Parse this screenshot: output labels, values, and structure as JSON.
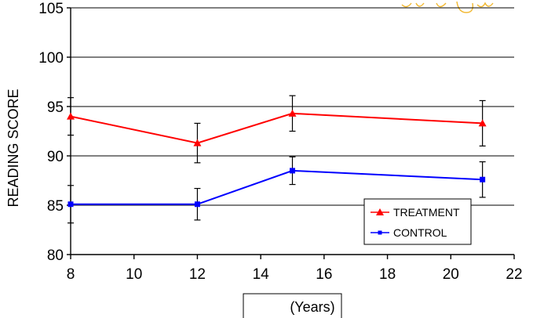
{
  "chart_data": {
    "type": "line",
    "title": "",
    "xlabel": "(Years)",
    "ylabel": "READING SCORE",
    "xlim": [
      8,
      22
    ],
    "ylim": [
      80,
      105
    ],
    "xticks": [
      8,
      10,
      12,
      14,
      16,
      18,
      20,
      22
    ],
    "yticks": [
      80,
      85,
      90,
      95,
      100,
      105
    ],
    "grid": "horizontal",
    "legend_position": "bottom-right",
    "series": [
      {
        "name": "TREATMENT",
        "color": "#ff0000",
        "marker": "triangle",
        "x": [
          8,
          12,
          15,
          21
        ],
        "y": [
          94.0,
          91.3,
          94.3,
          93.3
        ],
        "error": [
          1.9,
          2.0,
          1.8,
          2.3
        ]
      },
      {
        "name": "CONTROL",
        "color": "#0000ff",
        "marker": "square",
        "x": [
          8,
          12,
          15,
          21
        ],
        "y": [
          85.1,
          85.1,
          88.5,
          87.6
        ],
        "error": [
          1.9,
          1.6,
          1.4,
          1.8
        ]
      }
    ]
  },
  "colors": {
    "axis": "#000000",
    "grid": "#000000",
    "background": "#ffffff",
    "annotation_scribble": "#f2b830"
  }
}
